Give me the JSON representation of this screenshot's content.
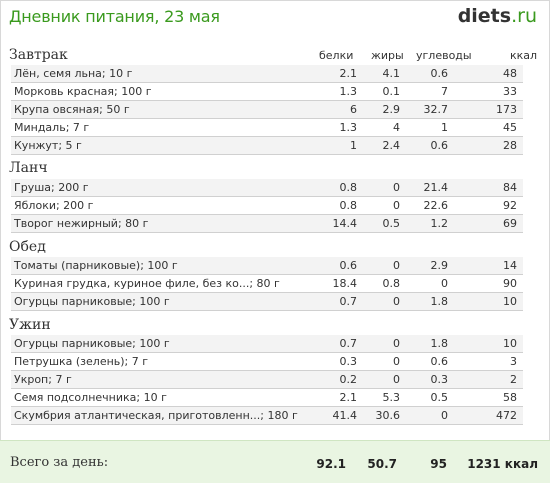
{
  "header": {
    "title": "Дневник питания, 23 мая",
    "logo_main": "diets",
    "logo_tld": ".ru"
  },
  "columns": {
    "protein": "белки",
    "fat": "жиры",
    "carbs": "углеводы",
    "kcal": "ккал"
  },
  "meals": [
    {
      "name": "Завтрак",
      "items": [
        {
          "name": "Лён, семя льна; 10 г",
          "protein": "2.1",
          "fat": "4.1",
          "carbs": "0.6",
          "kcal": "48"
        },
        {
          "name": "Морковь красная; 100 г",
          "protein": "1.3",
          "fat": "0.1",
          "carbs": "7",
          "kcal": "33"
        },
        {
          "name": "Крупа овсяная; 50 г",
          "protein": "6",
          "fat": "2.9",
          "carbs": "32.7",
          "kcal": "173"
        },
        {
          "name": "Миндаль; 7 г",
          "protein": "1.3",
          "fat": "4",
          "carbs": "1",
          "kcal": "45"
        },
        {
          "name": "Кунжут; 5 г",
          "protein": "1",
          "fat": "2.4",
          "carbs": "0.6",
          "kcal": "28"
        }
      ]
    },
    {
      "name": "Ланч",
      "items": [
        {
          "name": "Груша; 200 г",
          "protein": "0.8",
          "fat": "0",
          "carbs": "21.4",
          "kcal": "84"
        },
        {
          "name": "Яблоки; 200 г",
          "protein": "0.8",
          "fat": "0",
          "carbs": "22.6",
          "kcal": "92"
        },
        {
          "name": "Творог нежирный; 80 г",
          "protein": "14.4",
          "fat": "0.5",
          "carbs": "1.2",
          "kcal": "69"
        }
      ]
    },
    {
      "name": "Обед",
      "items": [
        {
          "name": "Томаты (парниковые); 100 г",
          "protein": "0.6",
          "fat": "0",
          "carbs": "2.9",
          "kcal": "14"
        },
        {
          "name": "Куриная грудка, куриное филе, без ко...; 80 г",
          "protein": "18.4",
          "fat": "0.8",
          "carbs": "0",
          "kcal": "90"
        },
        {
          "name": "Огурцы парниковые; 100 г",
          "protein": "0.7",
          "fat": "0",
          "carbs": "1.8",
          "kcal": "10"
        }
      ]
    },
    {
      "name": "Ужин",
      "items": [
        {
          "name": "Огурцы парниковые; 100 г",
          "protein": "0.7",
          "fat": "0",
          "carbs": "1.8",
          "kcal": "10"
        },
        {
          "name": "Петрушка (зелень); 7 г",
          "protein": "0.3",
          "fat": "0",
          "carbs": "0.6",
          "kcal": "3"
        },
        {
          "name": "Укроп; 7 г",
          "protein": "0.2",
          "fat": "0",
          "carbs": "0.3",
          "kcal": "2"
        },
        {
          "name": "Семя подсолнечника; 10 г",
          "protein": "2.1",
          "fat": "5.3",
          "carbs": "0.5",
          "kcal": "58"
        },
        {
          "name": "Скумбрия атлантическая, приготовленн...; 180 г",
          "protein": "41.4",
          "fat": "30.6",
          "carbs": "0",
          "kcal": "472"
        }
      ]
    }
  ],
  "totals": {
    "label": "Всего за день:",
    "protein": "92.1",
    "fat": "50.7",
    "carbs": "95",
    "kcal": "1231 ккал"
  },
  "colors": {
    "accent": "#3a9a1e",
    "footer_bg": "#e9f5e2",
    "row_alt": "#f3f3f3"
  }
}
